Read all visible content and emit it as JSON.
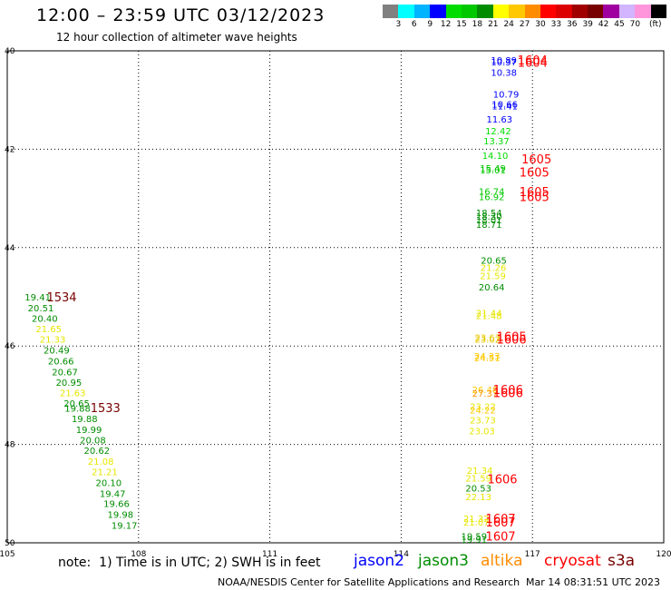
{
  "header": {
    "title": "12:00 – 23:59 UTC 03/12/2023",
    "subtitle": "12 hour collection of altimeter wave heights"
  },
  "legend": {
    "colors": [
      "#808080",
      "#00ffff",
      "#00b4ff",
      "#0000ff",
      "#00dc00",
      "#00c800",
      "#008c00",
      "#ffff00",
      "#ffc800",
      "#ff8c00",
      "#ff0000",
      "#dc0000",
      "#a00000",
      "#780000",
      "#a000a0",
      "#d2b4ff",
      "#ff96dc",
      "#000000"
    ],
    "labels": [
      "3",
      "6",
      "9",
      "12",
      "15",
      "18",
      "21",
      "24",
      "27",
      "30",
      "33",
      "36",
      "39",
      "42",
      "45",
      "70"
    ],
    "unit": "(ft)"
  },
  "chart_data": {
    "type": "scatter",
    "xlim": [
      105,
      120
    ],
    "ylim": [
      40,
      50
    ],
    "x_ticks": [
      "105",
      "108",
      "111",
      "114",
      "117",
      "120"
    ],
    "y_ticks": [
      "40",
      "42",
      "44",
      "46",
      "48",
      "50"
    ],
    "grid": true,
    "points": [
      {
        "lon": 116.05,
        "lat": 40.18,
        "text": "10.89",
        "color": "#0000ff"
      },
      {
        "lon": 116.05,
        "lat": 40.22,
        "text": "10.37",
        "color": "#0000ff"
      },
      {
        "lon": 116.05,
        "lat": 40.43,
        "text": "10.38",
        "color": "#0000ff"
      },
      {
        "lon": 116.1,
        "lat": 40.88,
        "text": "10.79",
        "color": "#0000ff"
      },
      {
        "lon": 116.07,
        "lat": 41.08,
        "text": "10.66",
        "color": "#0000ff"
      },
      {
        "lon": 116.07,
        "lat": 41.12,
        "text": "11.41",
        "color": "#0000ff"
      },
      {
        "lon": 115.95,
        "lat": 41.38,
        "text": "11.63",
        "color": "#0000ff"
      },
      {
        "lon": 115.92,
        "lat": 41.62,
        "text": "12.42",
        "color": "#00dc00"
      },
      {
        "lon": 115.88,
        "lat": 41.83,
        "text": "13.37",
        "color": "#00dc00"
      },
      {
        "lon": 115.85,
        "lat": 42.12,
        "text": "14.10",
        "color": "#00dc00"
      },
      {
        "lon": 115.8,
        "lat": 42.38,
        "text": "15.49",
        "color": "#00c800"
      },
      {
        "lon": 115.8,
        "lat": 42.42,
        "text": "15.01",
        "color": "#00c800"
      },
      {
        "lon": 115.77,
        "lat": 42.85,
        "text": "16.74",
        "color": "#00c800"
      },
      {
        "lon": 115.77,
        "lat": 42.96,
        "text": "16.92",
        "color": "#00c800"
      },
      {
        "lon": 115.71,
        "lat": 43.28,
        "text": "18.54",
        "color": "#008c00"
      },
      {
        "lon": 115.71,
        "lat": 43.36,
        "text": "18.30",
        "color": "#008c00"
      },
      {
        "lon": 115.71,
        "lat": 43.43,
        "text": "18.01",
        "color": "#008c00"
      },
      {
        "lon": 115.71,
        "lat": 43.52,
        "text": "18.71",
        "color": "#008c00"
      },
      {
        "lon": 115.82,
        "lat": 44.25,
        "text": "20.65",
        "color": "#008c00"
      },
      {
        "lon": 115.81,
        "lat": 44.4,
        "text": "21.26",
        "color": "#e6e600"
      },
      {
        "lon": 115.8,
        "lat": 44.57,
        "text": "21.59",
        "color": "#e6e600"
      },
      {
        "lon": 115.77,
        "lat": 44.8,
        "text": "20.64",
        "color": "#008c00"
      },
      {
        "lon": 115.71,
        "lat": 45.32,
        "text": "21.44",
        "color": "#e6e600"
      },
      {
        "lon": 115.71,
        "lat": 45.38,
        "text": "21.48",
        "color": "#e6e600"
      },
      {
        "lon": 115.68,
        "lat": 45.82,
        "text": "23.67",
        "color": "#e6c800"
      },
      {
        "lon": 115.68,
        "lat": 45.86,
        "text": "23.02",
        "color": "#e6c800"
      },
      {
        "lon": 115.67,
        "lat": 46.2,
        "text": "24.33",
        "color": "#ffc800"
      },
      {
        "lon": 115.67,
        "lat": 46.24,
        "text": "24.51",
        "color": "#ffc800"
      },
      {
        "lon": 115.62,
        "lat": 46.88,
        "text": "26.48",
        "color": "#ffc800"
      },
      {
        "lon": 115.62,
        "lat": 46.96,
        "text": "27.37",
        "color": "#ff8c00"
      },
      {
        "lon": 115.57,
        "lat": 47.22,
        "text": "23.22",
        "color": "#e6e600"
      },
      {
        "lon": 115.57,
        "lat": 47.3,
        "text": "24.22",
        "color": "#ffc800"
      },
      {
        "lon": 115.57,
        "lat": 47.5,
        "text": "23.73",
        "color": "#e6e600"
      },
      {
        "lon": 115.55,
        "lat": 47.72,
        "text": "23.03",
        "color": "#e6e600"
      },
      {
        "lon": 115.5,
        "lat": 48.52,
        "text": "21.34",
        "color": "#e6e600"
      },
      {
        "lon": 115.47,
        "lat": 48.68,
        "text": "21.59",
        "color": "#e6e600"
      },
      {
        "lon": 115.47,
        "lat": 48.88,
        "text": "20.53",
        "color": "#008c00"
      },
      {
        "lon": 115.47,
        "lat": 49.06,
        "text": "22.13",
        "color": "#e6e600"
      },
      {
        "lon": 115.42,
        "lat": 49.5,
        "text": "21.32",
        "color": "#e6e600"
      },
      {
        "lon": 115.42,
        "lat": 49.58,
        "text": "21.07",
        "color": "#e6e600"
      },
      {
        "lon": 115.37,
        "lat": 49.86,
        "text": "19.59",
        "color": "#008c00"
      },
      {
        "lon": 115.37,
        "lat": 49.93,
        "text": "19.91",
        "color": "#008c00"
      },
      {
        "lon": 105.4,
        "lat": 45.0,
        "text": "19.41",
        "color": "#008c00"
      },
      {
        "lon": 105.47,
        "lat": 45.22,
        "text": "20.51",
        "color": "#008c00"
      },
      {
        "lon": 105.56,
        "lat": 45.43,
        "text": "20.40",
        "color": "#008c00"
      },
      {
        "lon": 105.65,
        "lat": 45.65,
        "text": "21.65",
        "color": "#e6e600"
      },
      {
        "lon": 105.74,
        "lat": 45.86,
        "text": "21.33",
        "color": "#e6e600"
      },
      {
        "lon": 105.83,
        "lat": 46.08,
        "text": "20.49",
        "color": "#008c00"
      },
      {
        "lon": 105.93,
        "lat": 46.3,
        "text": "20.66",
        "color": "#008c00"
      },
      {
        "lon": 106.02,
        "lat": 46.52,
        "text": "20.67",
        "color": "#008c00"
      },
      {
        "lon": 106.11,
        "lat": 46.73,
        "text": "20.95",
        "color": "#008c00"
      },
      {
        "lon": 106.2,
        "lat": 46.95,
        "text": "21.63",
        "color": "#e6e600"
      },
      {
        "lon": 106.29,
        "lat": 47.16,
        "text": "20.65",
        "color": "#008c00"
      },
      {
        "lon": 106.31,
        "lat": 47.26,
        "text": "19.88",
        "color": "#008c00"
      },
      {
        "lon": 106.47,
        "lat": 47.47,
        "text": "19.88",
        "color": "#008c00"
      },
      {
        "lon": 106.57,
        "lat": 47.69,
        "text": "19.99",
        "color": "#008c00"
      },
      {
        "lon": 106.66,
        "lat": 47.91,
        "text": "20.08",
        "color": "#008c00"
      },
      {
        "lon": 106.75,
        "lat": 48.12,
        "text": "20.62",
        "color": "#008c00"
      },
      {
        "lon": 106.84,
        "lat": 48.34,
        "text": "21.08",
        "color": "#e6e600"
      },
      {
        "lon": 106.93,
        "lat": 48.55,
        "text": "21.21",
        "color": "#e6e600"
      },
      {
        "lon": 107.02,
        "lat": 48.77,
        "text": "20.10",
        "color": "#008c00"
      },
      {
        "lon": 107.11,
        "lat": 48.99,
        "text": "19.47",
        "color": "#008c00"
      },
      {
        "lon": 107.2,
        "lat": 49.2,
        "text": "19.66",
        "color": "#008c00"
      },
      {
        "lon": 107.29,
        "lat": 49.42,
        "text": "19.98",
        "color": "#008c00"
      },
      {
        "lon": 107.38,
        "lat": 49.64,
        "text": "19.17",
        "color": "#008c00"
      }
    ],
    "time_labels": [
      {
        "lon": 116.66,
        "lat": 40.18,
        "text": "1604",
        "color": "#ff0000"
      },
      {
        "lon": 116.66,
        "lat": 40.23,
        "text": "1604",
        "color": "#ff0000"
      },
      {
        "lon": 116.75,
        "lat": 42.2,
        "text": "1605",
        "color": "#ff0000"
      },
      {
        "lon": 116.7,
        "lat": 42.46,
        "text": "1605",
        "color": "#ff0000"
      },
      {
        "lon": 116.7,
        "lat": 42.86,
        "text": "1605",
        "color": "#ff0000"
      },
      {
        "lon": 116.7,
        "lat": 42.96,
        "text": "1605",
        "color": "#ff0000"
      },
      {
        "lon": 116.18,
        "lat": 45.8,
        "text": "1605",
        "color": "#ff0000"
      },
      {
        "lon": 116.18,
        "lat": 45.86,
        "text": "1606",
        "color": "#ff0000"
      },
      {
        "lon": 116.1,
        "lat": 46.88,
        "text": "1606",
        "color": "#ff0000"
      },
      {
        "lon": 116.1,
        "lat": 46.95,
        "text": "1606",
        "color": "#ff0000"
      },
      {
        "lon": 115.97,
        "lat": 48.7,
        "text": "1606",
        "color": "#ff0000"
      },
      {
        "lon": 115.93,
        "lat": 49.5,
        "text": "1607",
        "color": "#ff0000"
      },
      {
        "lon": 115.93,
        "lat": 49.58,
        "text": "1607",
        "color": "#ff0000"
      },
      {
        "lon": 115.93,
        "lat": 49.86,
        "text": "1607",
        "color": "#ff0000"
      },
      {
        "lon": 105.9,
        "lat": 45.0,
        "text": "1534",
        "color": "#780000"
      },
      {
        "lon": 106.9,
        "lat": 47.25,
        "text": "1533",
        "color": "#780000"
      }
    ]
  },
  "footer": {
    "note": "note:  1) Time is in UTC; 2) SWH is in feet",
    "satellites": [
      {
        "name": "jason2",
        "color": "#0000ff"
      },
      {
        "name": "jason3",
        "color": "#008c00"
      },
      {
        "name": "altika",
        "color": "#ff8c00"
      },
      {
        "name": "cryosat",
        "color": "#ff0000"
      },
      {
        "name": "s3a",
        "color": "#780000"
      }
    ],
    "credit": "NOAA/NESDIS Center for Satellite Applications and Research",
    "timestamp": "Mar 14 08:31:51 UTC 2023"
  }
}
